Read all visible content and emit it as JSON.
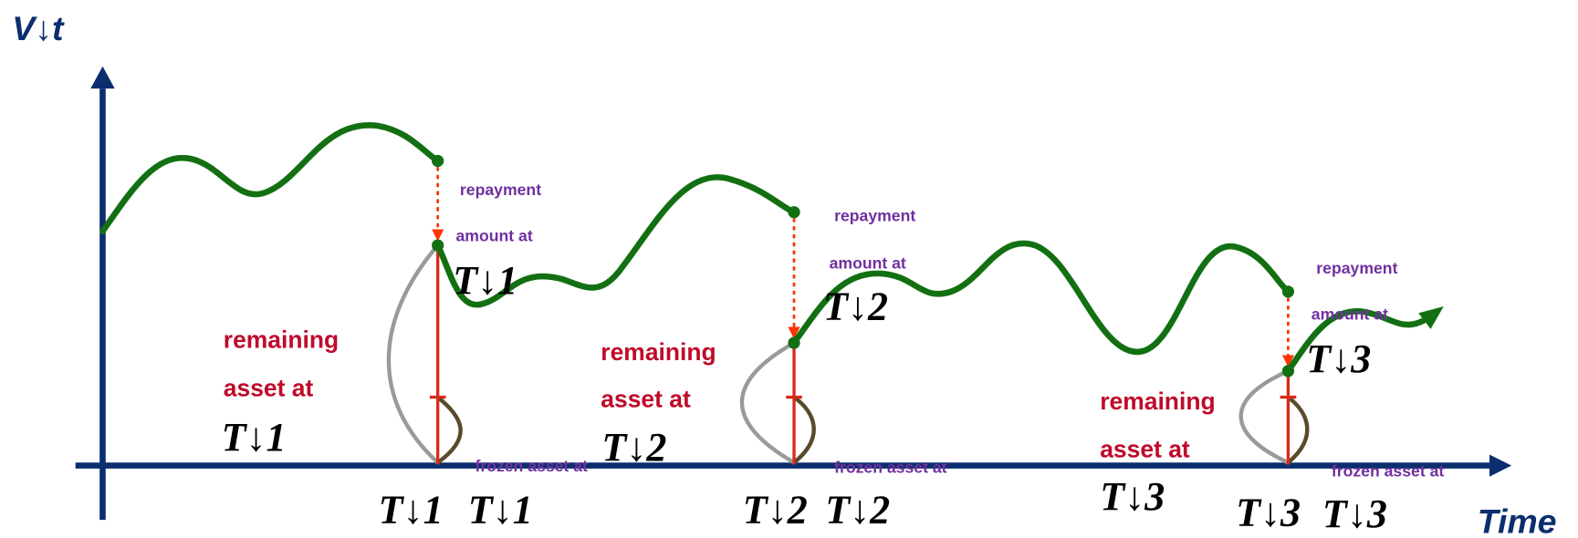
{
  "axes": {
    "y_label": "V↓t",
    "x_label": "Time"
  },
  "periods": [
    {
      "time_label": "T↓1",
      "repayment": [
        "repayment",
        "amount at",
        "T↓1"
      ],
      "remaining": [
        "remaining",
        "asset at",
        "T↓1"
      ],
      "frozen": [
        "frozen asset at",
        "T↓1"
      ]
    },
    {
      "time_label": "T↓2",
      "repayment": [
        "repayment",
        "amount at",
        "T↓2"
      ],
      "remaining": [
        "remaining",
        "asset at",
        "T↓2"
      ],
      "frozen": [
        "frozen asset at",
        "T↓2"
      ]
    },
    {
      "time_label": "T↓3",
      "repayment": [
        "repayment",
        "amount at",
        "T↓3"
      ],
      "remaining": [
        "remaining",
        "asset at",
        "T↓3"
      ],
      "frozen": [
        "frozen asset at",
        "T↓3"
      ]
    }
  ]
}
